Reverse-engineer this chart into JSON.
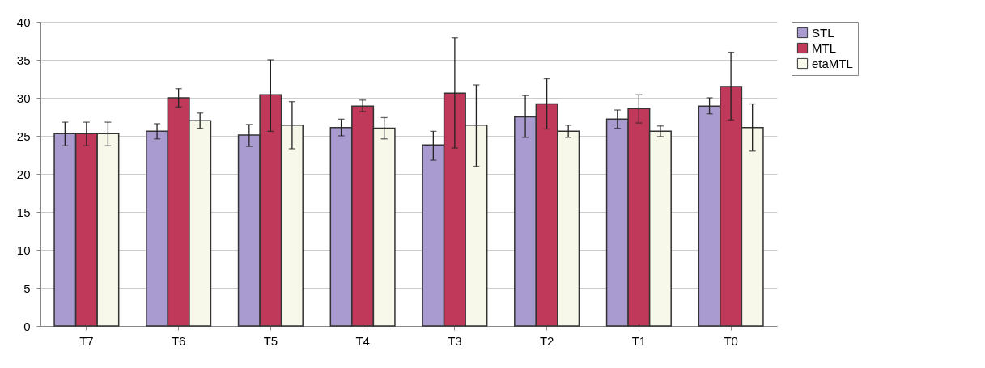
{
  "chart_data": {
    "type": "bar",
    "categories": [
      "T7",
      "T6",
      "T5",
      "T4",
      "T3",
      "T2",
      "T1",
      "T0"
    ],
    "ylim": [
      0,
      40
    ],
    "yticks": [
      0,
      5,
      10,
      15,
      20,
      25,
      30,
      35,
      40
    ],
    "grid": "y",
    "legend": "right",
    "series": [
      {
        "name": "STL",
        "color": "#a99bd0",
        "values": [
          25.3,
          25.6,
          25.1,
          26.1,
          23.8,
          27.5,
          27.2,
          28.9
        ],
        "errors": [
          [
            23.7,
            26.8
          ],
          [
            24.6,
            26.6
          ],
          [
            23.6,
            26.5
          ],
          [
            25,
            27.2
          ],
          [
            21.8,
            25.6
          ],
          [
            24.8,
            30.3
          ],
          [
            26,
            28.4
          ],
          [
            27.9,
            30
          ]
        ]
      },
      {
        "name": "MTL",
        "color": "#c0395a",
        "values": [
          25.3,
          30,
          30.4,
          28.9,
          30.6,
          29.2,
          28.6,
          31.5
        ],
        "errors": [
          [
            23.7,
            26.8
          ],
          [
            28.8,
            31.2
          ],
          [
            25.6,
            35
          ],
          [
            28.2,
            29.7
          ],
          [
            23.4,
            37.9
          ],
          [
            25.9,
            32.5
          ],
          [
            26.7,
            30.4
          ],
          [
            27.1,
            36
          ]
        ]
      },
      {
        "name": "etaMTL",
        "color": "#f8f8ea",
        "values": [
          25.3,
          27,
          26.4,
          26,
          26.4,
          25.6,
          25.6,
          26.1
        ],
        "errors": [
          [
            23.7,
            26.8
          ],
          [
            26,
            28
          ],
          [
            23.3,
            29.5
          ],
          [
            24.6,
            27.4
          ],
          [
            21,
            31.7
          ],
          [
            24.8,
            26.4
          ],
          [
            24.9,
            26.3
          ],
          [
            23,
            29.2
          ]
        ]
      }
    ]
  }
}
